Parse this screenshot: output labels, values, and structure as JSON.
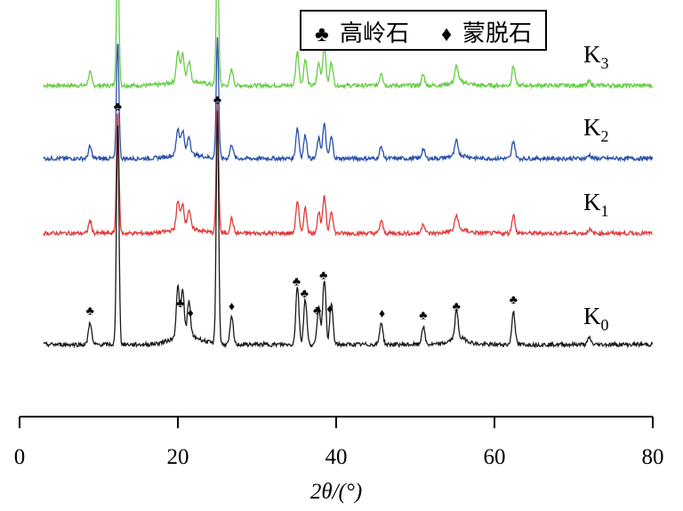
{
  "chart_data": {
    "type": "line",
    "xlabel": "2θ/(°)",
    "xlim": [
      0,
      80
    ],
    "xticks": [
      "0",
      "20",
      "40",
      "60",
      "80"
    ],
    "grid": false,
    "legend_position": "top-right",
    "legend": [
      {
        "symbol": "♣",
        "label": "高岭石"
      },
      {
        "symbol": "♦",
        "label": "蒙脱石"
      }
    ],
    "peaks": [
      {
        "x": 8.9,
        "h": 0.1
      },
      {
        "x": 12.4,
        "h": 1.0
      },
      {
        "x": 20.0,
        "h": 0.22
      },
      {
        "x": 20.6,
        "h": 0.2
      },
      {
        "x": 21.4,
        "h": 0.15
      },
      {
        "x": 25.0,
        "h": 1.03
      },
      {
        "x": 26.8,
        "h": 0.12
      },
      {
        "x": 35.1,
        "h": 0.26
      },
      {
        "x": 36.1,
        "h": 0.2
      },
      {
        "x": 37.8,
        "h": 0.17
      },
      {
        "x": 38.5,
        "h": 0.29
      },
      {
        "x": 39.4,
        "h": 0.18
      },
      {
        "x": 45.7,
        "h": 0.1
      },
      {
        "x": 51.0,
        "h": 0.08
      },
      {
        "x": 55.2,
        "h": 0.12
      },
      {
        "x": 62.4,
        "h": 0.15
      },
      {
        "x": 72.0,
        "h": 0.03
      }
    ],
    "markers": [
      {
        "x": 8.9,
        "symbol": "♣"
      },
      {
        "x": 12.4,
        "symbol": "♣"
      },
      {
        "x": 20.3,
        "symbol": "♣"
      },
      {
        "x": 21.6,
        "symbol": "♦"
      },
      {
        "x": 25.0,
        "symbol": "♣"
      },
      {
        "x": 26.8,
        "symbol": "♦"
      },
      {
        "x": 35.0,
        "symbol": "♣"
      },
      {
        "x": 36.0,
        "symbol": "♣"
      },
      {
        "x": 37.6,
        "symbol": "♣"
      },
      {
        "x": 38.4,
        "symbol": "♣"
      },
      {
        "x": 39.2,
        "symbol": "♦"
      },
      {
        "x": 45.8,
        "symbol": "♦"
      },
      {
        "x": 51.0,
        "symbol": "♣"
      },
      {
        "x": 55.2,
        "symbol": "♣"
      },
      {
        "x": 62.4,
        "symbol": "♣"
      }
    ],
    "series": [
      {
        "name": "K",
        "subscript": "3",
        "color": "#66cc44",
        "xrange": [
          3.0,
          80.0
        ],
        "scale": 0.58
      },
      {
        "name": "K",
        "subscript": "2",
        "color": "#2a4fa8",
        "xrange": [
          3.0,
          80.0
        ],
        "scale": 0.52
      },
      {
        "name": "K",
        "subscript": "1",
        "color": "#e03a3a",
        "xrange": [
          3.0,
          80.0
        ],
        "scale": 0.55
      },
      {
        "name": "K",
        "subscript": "0",
        "color": "#1a1a1a",
        "xrange": [
          3.0,
          80.0
        ],
        "scale": 1.0
      }
    ]
  }
}
